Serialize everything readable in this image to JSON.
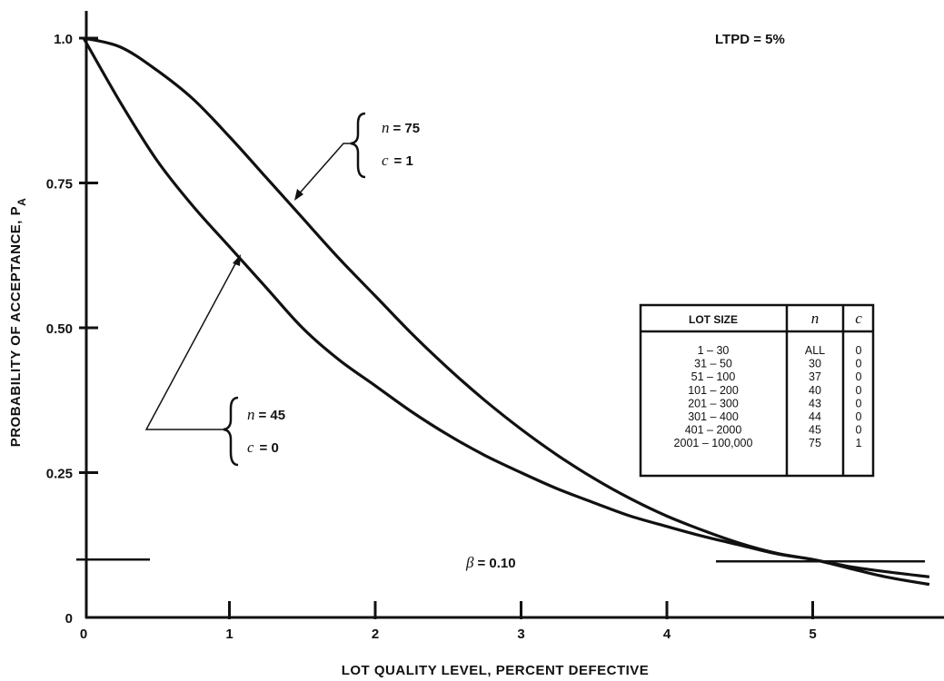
{
  "chart_data": {
    "type": "line",
    "title": "",
    "xlabel": "LOT QUALITY LEVEL, PERCENT DEFECTIVE",
    "ylabel": "PROBABILITY OF ACCEPTANCE, P",
    "ylabel_subscript": "A",
    "xlim": [
      0,
      5.8
    ],
    "ylim": [
      0,
      1.0
    ],
    "x_ticks": [
      0,
      1,
      2,
      3,
      4,
      5
    ],
    "y_ticks": [
      0,
      0.25,
      0.5,
      0.75,
      1.0
    ],
    "x_tick_labels": [
      "0",
      "1",
      "2",
      "3",
      "4",
      "5"
    ],
    "y_tick_labels": [
      "0",
      "0.25",
      "0.50",
      "0.75",
      "1.0"
    ],
    "grid": false,
    "series": [
      {
        "label_n": "n",
        "label_n_value": "= 75",
        "label_c": "c",
        "label_c_value": "= 1",
        "x": [
          0,
          0.25,
          0.5,
          0.75,
          1.0,
          1.25,
          1.5,
          1.75,
          2.0,
          2.25,
          2.5,
          2.75,
          3.0,
          3.25,
          3.5,
          3.75,
          4.0,
          4.25,
          4.5,
          4.75,
          5.0,
          5.25,
          5.5,
          5.8
        ],
        "y": [
          1.0,
          0.985,
          0.945,
          0.895,
          0.83,
          0.76,
          0.69,
          0.62,
          0.555,
          0.49,
          0.43,
          0.375,
          0.325,
          0.28,
          0.24,
          0.205,
          0.175,
          0.15,
          0.128,
          0.111,
          0.1,
          0.088,
          0.079,
          0.07
        ]
      },
      {
        "label_n": "n",
        "label_n_value": "= 45",
        "label_c": "c",
        "label_c_value": "= 0",
        "x": [
          0,
          0.25,
          0.5,
          0.75,
          1.0,
          1.25,
          1.5,
          1.75,
          2.0,
          2.25,
          2.5,
          2.75,
          3.0,
          3.25,
          3.5,
          3.75,
          4.0,
          4.25,
          4.5,
          4.75,
          5.0,
          5.25,
          5.5,
          5.8
        ],
        "y": [
          1.0,
          0.89,
          0.79,
          0.71,
          0.64,
          0.57,
          0.5,
          0.445,
          0.4,
          0.355,
          0.315,
          0.28,
          0.25,
          0.222,
          0.198,
          0.175,
          0.157,
          0.14,
          0.125,
          0.11,
          0.1,
          0.085,
          0.07,
          0.057
        ]
      }
    ],
    "annotations": {
      "ltpd": "LTPD = 5%",
      "beta_symbol": "β",
      "beta_value": "= 0.10",
      "beta_level": 0.1
    },
    "table": {
      "headers": [
        "LOT SIZE",
        "n",
        "c"
      ],
      "rows": [
        [
          "1 – 30",
          "ALL",
          "0"
        ],
        [
          "31 – 50",
          "30",
          "0"
        ],
        [
          "51 – 100",
          "37",
          "0"
        ],
        [
          "101 – 200",
          "40",
          "0"
        ],
        [
          "201 – 300",
          "43",
          "0"
        ],
        [
          "301 – 400",
          "44",
          "0"
        ],
        [
          "401 – 2000",
          "45",
          "0"
        ],
        [
          "2001 – 100,000",
          "75",
          "1"
        ]
      ]
    }
  }
}
